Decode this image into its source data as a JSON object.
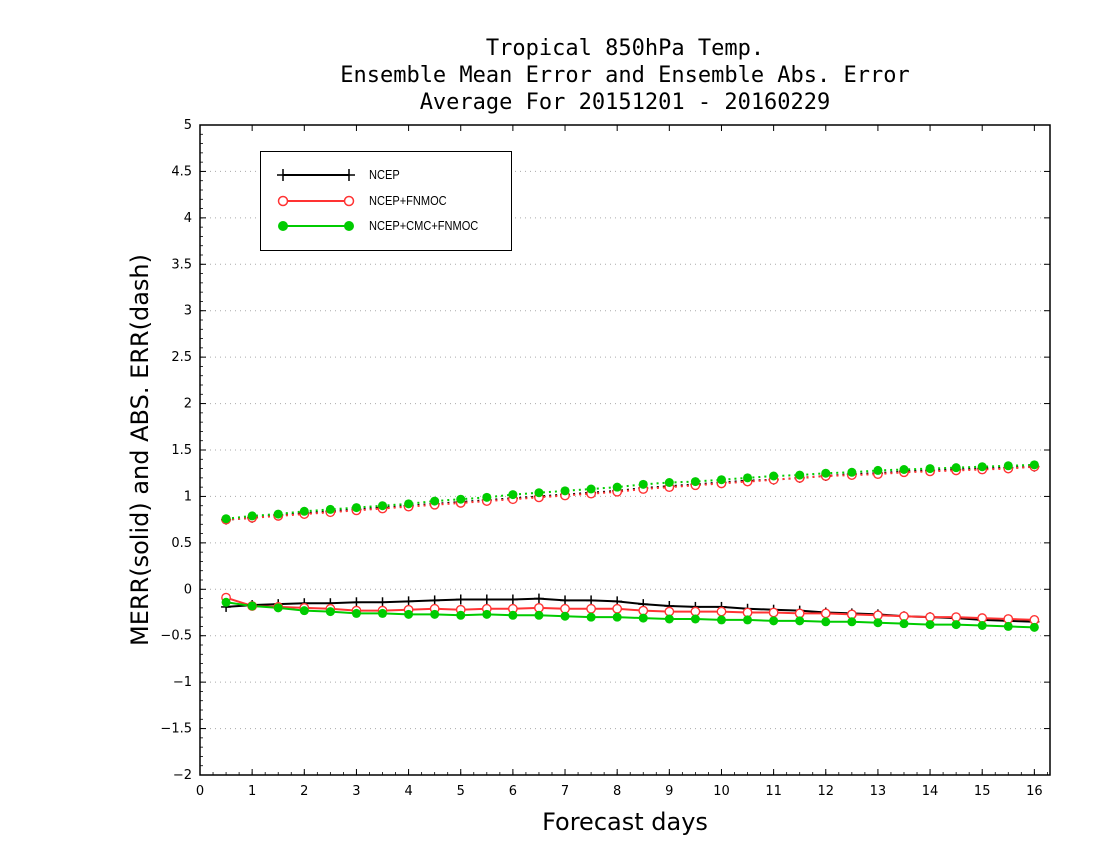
{
  "chart_data": {
    "type": "line",
    "title": [
      "Tropical 850hPa Temp.",
      "Ensemble Mean Error and Ensemble Abs. Error",
      "Average For 20151201 - 20160229"
    ],
    "xlabel": "Forecast days",
    "ylabel": "MERR(solid) and ABS. ERR(dash)",
    "xlim": [
      0,
      16.3
    ],
    "ylim": [
      -2,
      5
    ],
    "xticks": [
      0,
      1,
      2,
      3,
      4,
      5,
      6,
      7,
      8,
      9,
      10,
      11,
      12,
      13,
      14,
      15,
      16
    ],
    "xtick_labels": [
      "0",
      "1",
      "2",
      "3",
      "4",
      "5",
      "6",
      "7",
      "8",
      "9",
      "10",
      "11",
      "12",
      "13",
      "14",
      "15",
      "16"
    ],
    "yticks": [
      -2,
      -1.5,
      -1,
      -0.5,
      0,
      0.5,
      1,
      1.5,
      2,
      2.5,
      3,
      3.5,
      4,
      4.5,
      5
    ],
    "ytick_labels": [
      "−2",
      "−1.5",
      "−1",
      "−0.5",
      "0",
      "0.5",
      "1",
      "1.5",
      "2",
      "2.5",
      "3",
      "3.5",
      "4",
      "4.5",
      "5"
    ],
    "grid": true,
    "legend_position": "top-left",
    "x": [
      0.5,
      1.0,
      1.5,
      2.0,
      2.5,
      3.0,
      3.5,
      4.0,
      4.5,
      5.0,
      5.5,
      6.0,
      6.5,
      7.0,
      7.5,
      8.0,
      8.5,
      9.0,
      9.5,
      10.0,
      10.5,
      11.0,
      11.5,
      12.0,
      12.5,
      13.0,
      13.5,
      14.0,
      14.5,
      15.0,
      15.5,
      16.0
    ],
    "series": [
      {
        "name": "NCEP",
        "color": "#000000",
        "marker": "plus",
        "merr": [
          -0.19,
          -0.17,
          -0.16,
          -0.15,
          -0.15,
          -0.14,
          -0.14,
          -0.13,
          -0.12,
          -0.11,
          -0.11,
          -0.11,
          -0.1,
          -0.12,
          -0.12,
          -0.13,
          -0.16,
          -0.18,
          -0.19,
          -0.19,
          -0.21,
          -0.22,
          -0.23,
          -0.25,
          -0.26,
          -0.27,
          -0.29,
          -0.3,
          -0.31,
          -0.33,
          -0.34,
          -0.35
        ],
        "abs_err": [
          0.75,
          0.77,
          0.8,
          0.82,
          0.84,
          0.86,
          0.88,
          0.9,
          0.92,
          0.94,
          0.96,
          0.98,
          1.0,
          1.02,
          1.04,
          1.06,
          1.09,
          1.11,
          1.13,
          1.15,
          1.17,
          1.18,
          1.2,
          1.22,
          1.24,
          1.25,
          1.27,
          1.28,
          1.29,
          1.3,
          1.31,
          1.32
        ]
      },
      {
        "name": "NCEP+FNMOC",
        "color": "#ff3333",
        "marker": "open-circle",
        "merr": [
          -0.09,
          -0.18,
          -0.19,
          -0.2,
          -0.21,
          -0.23,
          -0.23,
          -0.22,
          -0.21,
          -0.22,
          -0.21,
          -0.21,
          -0.2,
          -0.21,
          -0.21,
          -0.21,
          -0.23,
          -0.24,
          -0.24,
          -0.24,
          -0.25,
          -0.25,
          -0.26,
          -0.26,
          -0.27,
          -0.28,
          -0.29,
          -0.3,
          -0.3,
          -0.31,
          -0.32,
          -0.33
        ],
        "abs_err": [
          0.75,
          0.77,
          0.79,
          0.81,
          0.83,
          0.85,
          0.87,
          0.89,
          0.91,
          0.93,
          0.95,
          0.97,
          0.99,
          1.01,
          1.03,
          1.05,
          1.08,
          1.1,
          1.12,
          1.14,
          1.16,
          1.18,
          1.2,
          1.22,
          1.23,
          1.24,
          1.26,
          1.27,
          1.28,
          1.29,
          1.3,
          1.32
        ]
      },
      {
        "name": "NCEP+CMC+FNMOC",
        "color": "#00cc00",
        "marker": "filled-circle",
        "merr": [
          -0.14,
          -0.18,
          -0.2,
          -0.23,
          -0.24,
          -0.26,
          -0.26,
          -0.27,
          -0.27,
          -0.28,
          -0.27,
          -0.28,
          -0.28,
          -0.29,
          -0.3,
          -0.3,
          -0.31,
          -0.32,
          -0.32,
          -0.33,
          -0.33,
          -0.34,
          -0.34,
          -0.35,
          -0.35,
          -0.36,
          -0.37,
          -0.38,
          -0.38,
          -0.39,
          -0.4,
          -0.41
        ],
        "abs_err": [
          0.76,
          0.79,
          0.81,
          0.84,
          0.86,
          0.88,
          0.9,
          0.92,
          0.95,
          0.97,
          0.99,
          1.02,
          1.04,
          1.06,
          1.08,
          1.1,
          1.13,
          1.15,
          1.16,
          1.18,
          1.2,
          1.22,
          1.23,
          1.25,
          1.26,
          1.28,
          1.29,
          1.3,
          1.31,
          1.32,
          1.33,
          1.34
        ]
      }
    ]
  }
}
